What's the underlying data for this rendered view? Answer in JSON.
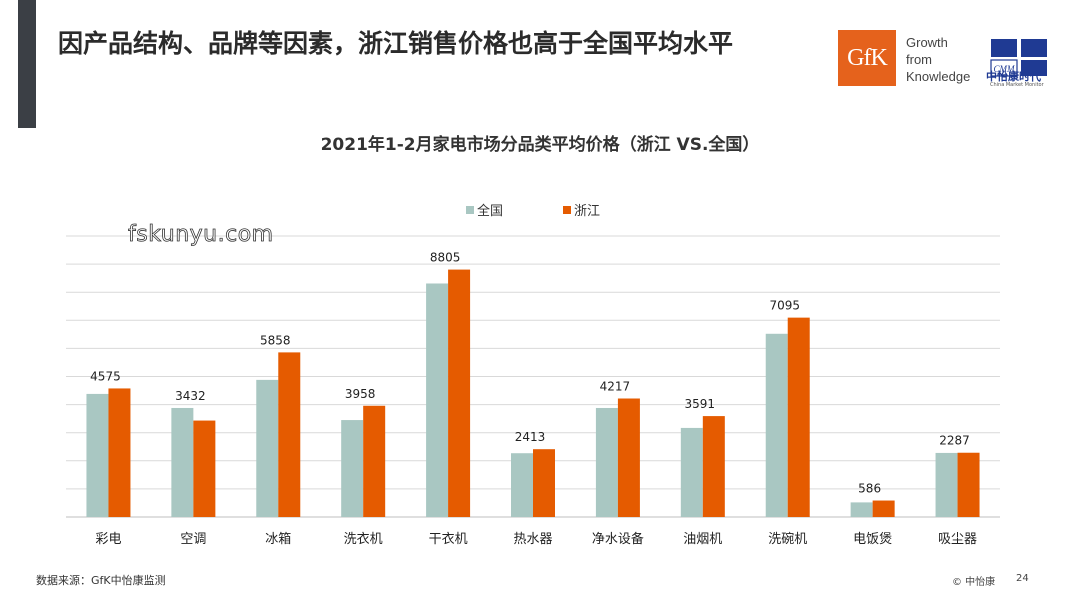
{
  "slide": {
    "title": "因产品结构、品牌等因素，浙江销售价格也高于全国平均水平"
  },
  "logos": {
    "gfk_mark": "GfK",
    "gfk_tagline": [
      "Growth",
      "from",
      "Knowledge"
    ],
    "cmm_mark": "CMM",
    "cmm_name": "中怡康时代",
    "cmm_sub": "China Market Monitor"
  },
  "watermark": "fskunyu.com",
  "footer": {
    "source": "数据来源：GfK中怡康监测",
    "copyright": "© 中怡康",
    "page": "24"
  },
  "colors": {
    "national": "#a9c7c2",
    "zhejiang": "#e55b00",
    "grid": "#d9d9d9",
    "accent_bar": "#3b3f45",
    "gfk_brand": "#e5621c"
  },
  "chart_data": {
    "type": "bar",
    "title": "2021年1-2月家电市场分品类平均价格（浙江 VS.全国）",
    "categories": [
      "彩电",
      "空调",
      "冰箱",
      "洗衣机",
      "干衣机",
      "热水器",
      "净水设备",
      "油烟机",
      "洗碗机",
      "电饭煲",
      "吸尘器"
    ],
    "series": [
      {
        "name": "全国",
        "values": [
          4380,
          3880,
          4880,
          3450,
          8310,
          2270,
          3880,
          3170,
          6520,
          520,
          2280
        ]
      },
      {
        "name": "浙江",
        "values": [
          4575,
          3432,
          5858,
          3958,
          8805,
          2413,
          4217,
          3591,
          7095,
          586,
          2287
        ]
      }
    ],
    "data_labels": [
      "4575",
      "3432",
      "5858",
      "3958",
      "8805",
      "2413",
      "4217",
      "3591",
      "7095",
      "586",
      "2287"
    ],
    "legend_position": "top",
    "ylim": [
      0,
      10000
    ],
    "gridlines": true,
    "xlabel": "",
    "ylabel": ""
  }
}
